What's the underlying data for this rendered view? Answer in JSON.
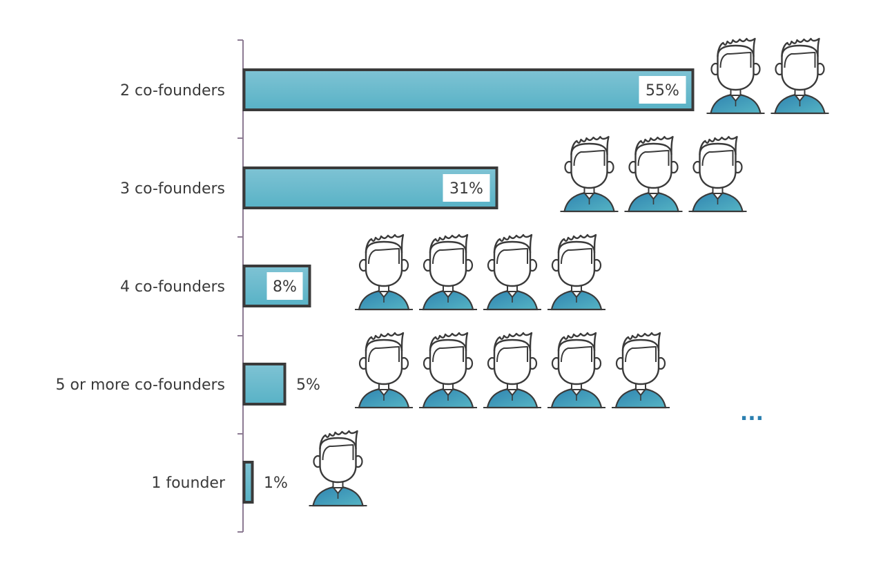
{
  "chart_data": {
    "type": "bar",
    "orientation": "horizontal",
    "categories": [
      "2 co-founders",
      "3 co-founders",
      "4 co-founders",
      "5 or more co-founders",
      "1 founder"
    ],
    "values": [
      55,
      31,
      8,
      5,
      1
    ],
    "value_labels": [
      "55%",
      "31%",
      "8%",
      "5%",
      "1%"
    ],
    "icon_counts": [
      2,
      3,
      4,
      5,
      1
    ],
    "icon_name": "founder-person-icon",
    "more_indicator": "...",
    "more_indicator_row": 3,
    "xlim": [
      0,
      55
    ],
    "grid": false,
    "legend": "none",
    "title": "",
    "xlabel": "",
    "ylabel": ""
  },
  "colors": {
    "bar_fill_light": "#7fc3d4",
    "bar_fill_dark": "#58b2c6",
    "bar_outline": "#3a3a3a",
    "axis": "#8c7a92",
    "label_text": "#3a3a3a",
    "label_box": "#ffffff",
    "icon_outline": "#3a3a3a",
    "icon_shirt_dark": "#2f83b0",
    "icon_shirt_light": "#55b4c4",
    "ellipsis": "#2a7fb0"
  }
}
